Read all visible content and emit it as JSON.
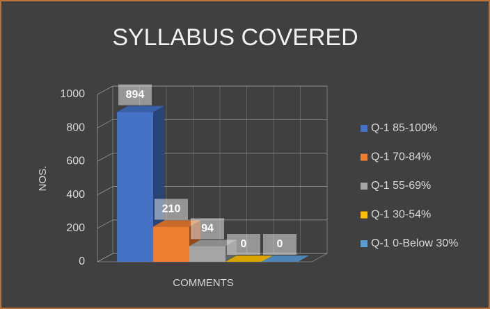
{
  "chart_data": {
    "type": "bar",
    "title": "SYLLABUS COVERED",
    "y_label": "NOS.",
    "categories": [
      "COMMENTS"
    ],
    "series": [
      {
        "name": "Q-1 85-100%",
        "color": "#4472c4",
        "values": [
          894
        ]
      },
      {
        "name": "Q-1 70-84%",
        "color": "#ed7d31",
        "values": [
          210
        ]
      },
      {
        "name": "Q-1 55-69%",
        "color": "#a5a5a5",
        "values": [
          94
        ]
      },
      {
        "name": "Q-1 30-54%",
        "color": "#ffc000",
        "values": [
          0
        ]
      },
      {
        "name": "Q-1 0-Below 30%",
        "color": "#5b9bd5",
        "values": [
          0
        ]
      }
    ],
    "ylim": [
      0,
      1000
    ],
    "yticks": [
      0,
      200,
      400,
      600,
      800,
      1000
    ],
    "grid": true,
    "legend": "right"
  }
}
